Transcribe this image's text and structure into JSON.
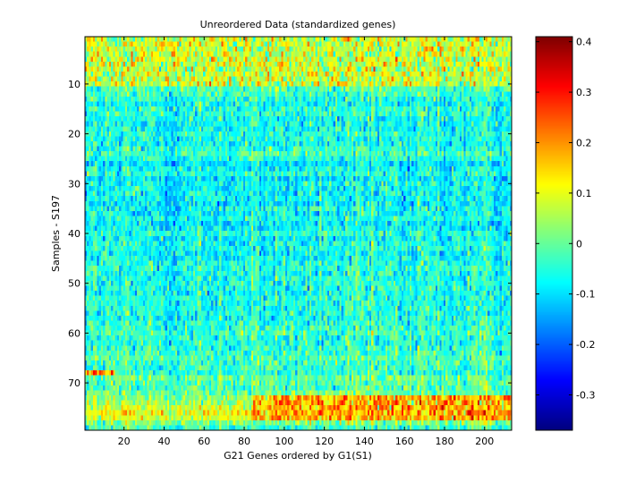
{
  "chart_data": [
    {
      "type": "heatmap",
      "title": "Unreordered Data (standardized genes)",
      "xlabel": "G21 Genes ordered by G1(S1)",
      "ylabel": "Samples - S197",
      "xlim": [
        0.5,
        213.5
      ],
      "ylim": [
        0.5,
        79.5
      ],
      "y_reversed": true,
      "n_rows": 79,
      "n_cols": 213,
      "colormap": "jet",
      "clim": [
        -0.37,
        0.41
      ],
      "xticks": [
        20,
        40,
        60,
        80,
        100,
        120,
        140,
        160,
        180,
        200
      ],
      "yticks": [
        10,
        20,
        30,
        40,
        50,
        60,
        70
      ],
      "row_profile": [
        [
          1,
          0.06
        ],
        [
          2,
          0.1
        ],
        [
          3,
          0.11
        ],
        [
          4,
          0.09
        ],
        [
          5,
          0.03
        ],
        [
          6,
          0.04
        ],
        [
          7,
          0.1
        ],
        [
          8,
          0.08
        ],
        [
          9,
          0.1
        ],
        [
          10,
          0.07
        ],
        [
          11,
          -0.02
        ],
        [
          12,
          -0.03
        ],
        [
          13,
          -0.06
        ],
        [
          14,
          -0.07
        ],
        [
          15,
          -0.05
        ],
        [
          16,
          -0.05
        ],
        [
          17,
          -0.07
        ],
        [
          18,
          -0.07
        ],
        [
          19,
          -0.07
        ],
        [
          20,
          -0.05
        ],
        [
          21,
          -0.06
        ],
        [
          22,
          -0.07
        ],
        [
          23,
          -0.05
        ],
        [
          24,
          -0.03
        ],
        [
          25,
          -0.06
        ],
        [
          26,
          -0.1
        ],
        [
          27,
          -0.07
        ],
        [
          28,
          -0.06
        ],
        [
          29,
          -0.09
        ],
        [
          30,
          -0.07
        ],
        [
          31,
          -0.08
        ],
        [
          32,
          -0.08
        ],
        [
          33,
          -0.08
        ],
        [
          34,
          -0.09
        ],
        [
          35,
          -0.07
        ],
        [
          36,
          -0.08
        ],
        [
          37,
          -0.06
        ],
        [
          38,
          -0.09
        ],
        [
          39,
          -0.08
        ],
        [
          40,
          -0.06
        ],
        [
          41,
          -0.08
        ],
        [
          42,
          -0.07
        ],
        [
          43,
          -0.06
        ],
        [
          44,
          -0.08
        ],
        [
          45,
          -0.07
        ],
        [
          46,
          -0.06
        ],
        [
          47,
          -0.05
        ],
        [
          48,
          -0.07
        ],
        [
          49,
          -0.06
        ],
        [
          50,
          -0.06
        ],
        [
          51,
          -0.06
        ],
        [
          52,
          -0.07
        ],
        [
          53,
          -0.06
        ],
        [
          54,
          -0.06
        ],
        [
          55,
          -0.05
        ],
        [
          56,
          -0.06
        ],
        [
          57,
          -0.06
        ],
        [
          58,
          -0.05
        ],
        [
          59,
          -0.04
        ],
        [
          60,
          -0.03
        ],
        [
          61,
          -0.05
        ],
        [
          62,
          -0.06
        ],
        [
          63,
          -0.04
        ],
        [
          64,
          -0.04
        ],
        [
          65,
          -0.02
        ],
        [
          66,
          -0.03
        ],
        [
          67,
          -0.04
        ],
        [
          68,
          -0.05
        ],
        [
          69,
          0.0
        ],
        [
          70,
          -0.01
        ],
        [
          71,
          -0.02
        ],
        [
          72,
          0.0
        ],
        [
          73,
          0.02
        ],
        [
          74,
          0.05
        ],
        [
          75,
          0.08
        ],
        [
          76,
          0.1
        ],
        [
          77,
          0.08
        ],
        [
          78,
          0.02
        ],
        [
          79,
          -0.03
        ]
      ],
      "hot_regions": [
        {
          "rows": [
            1,
            10
          ],
          "cols": [
            1,
            213
          ],
          "mean": 0.08
        },
        {
          "rows": [
            68,
            68
          ],
          "cols": [
            1,
            15
          ],
          "mean": 0.22
        },
        {
          "rows": [
            73,
            77
          ],
          "cols": [
            85,
            213
          ],
          "mean": 0.18
        }
      ]
    },
    {
      "type": "colorbar",
      "colormap": "jet",
      "range": [
        -0.37,
        0.41
      ],
      "ticks": [
        "0.4",
        "0.3",
        "0.2",
        "0.1",
        "0",
        "-0.1",
        "-0.2",
        "-0.3"
      ]
    }
  ]
}
